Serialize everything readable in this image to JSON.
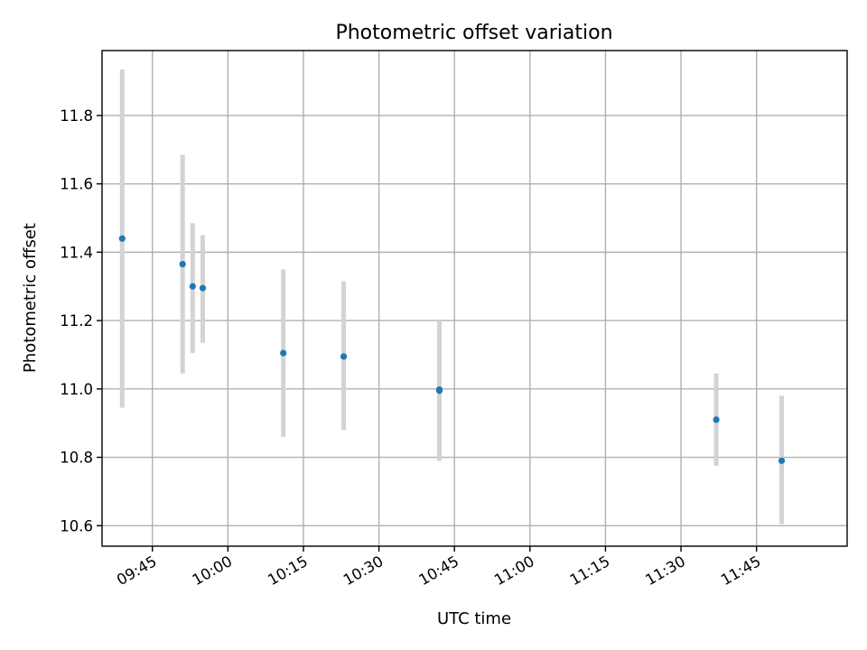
{
  "chart_data": {
    "type": "scatter",
    "title": "Photometric offset variation",
    "xlabel": "UTC time",
    "ylabel": "Photometric offset",
    "grid": true,
    "x_unit": "UTC time (HH:MM)",
    "xlim": [
      "09:35",
      "12:03"
    ],
    "ylim": [
      10.54,
      11.99
    ],
    "x_ticks": [
      "09:45",
      "10:00",
      "10:15",
      "10:30",
      "10:45",
      "11:00",
      "11:15",
      "11:30",
      "11:45"
    ],
    "y_ticks": [
      "10.6",
      "10.8",
      "11.0",
      "11.2",
      "11.4",
      "11.6",
      "11.8"
    ],
    "points_color": "#1f77b4",
    "errorbar_color": "#d3d3d3",
    "series": [
      {
        "x": [
          "09:39",
          "09:51",
          "09:53",
          "09:55",
          "10:11",
          "10:23",
          "10:42",
          "10:42",
          "11:37",
          "11:50"
        ],
        "y": [
          11.44,
          11.365,
          11.3,
          11.295,
          11.105,
          11.095,
          10.995,
          10.998,
          10.91,
          10.79
        ],
        "yerr_low": [
          10.945,
          11.045,
          11.105,
          11.135,
          10.86,
          10.88,
          10.79,
          10.79,
          10.775,
          10.605
        ],
        "yerr_high": [
          11.935,
          11.685,
          11.485,
          11.45,
          11.35,
          11.315,
          11.2,
          11.2,
          11.045,
          10.98
        ]
      }
    ]
  }
}
